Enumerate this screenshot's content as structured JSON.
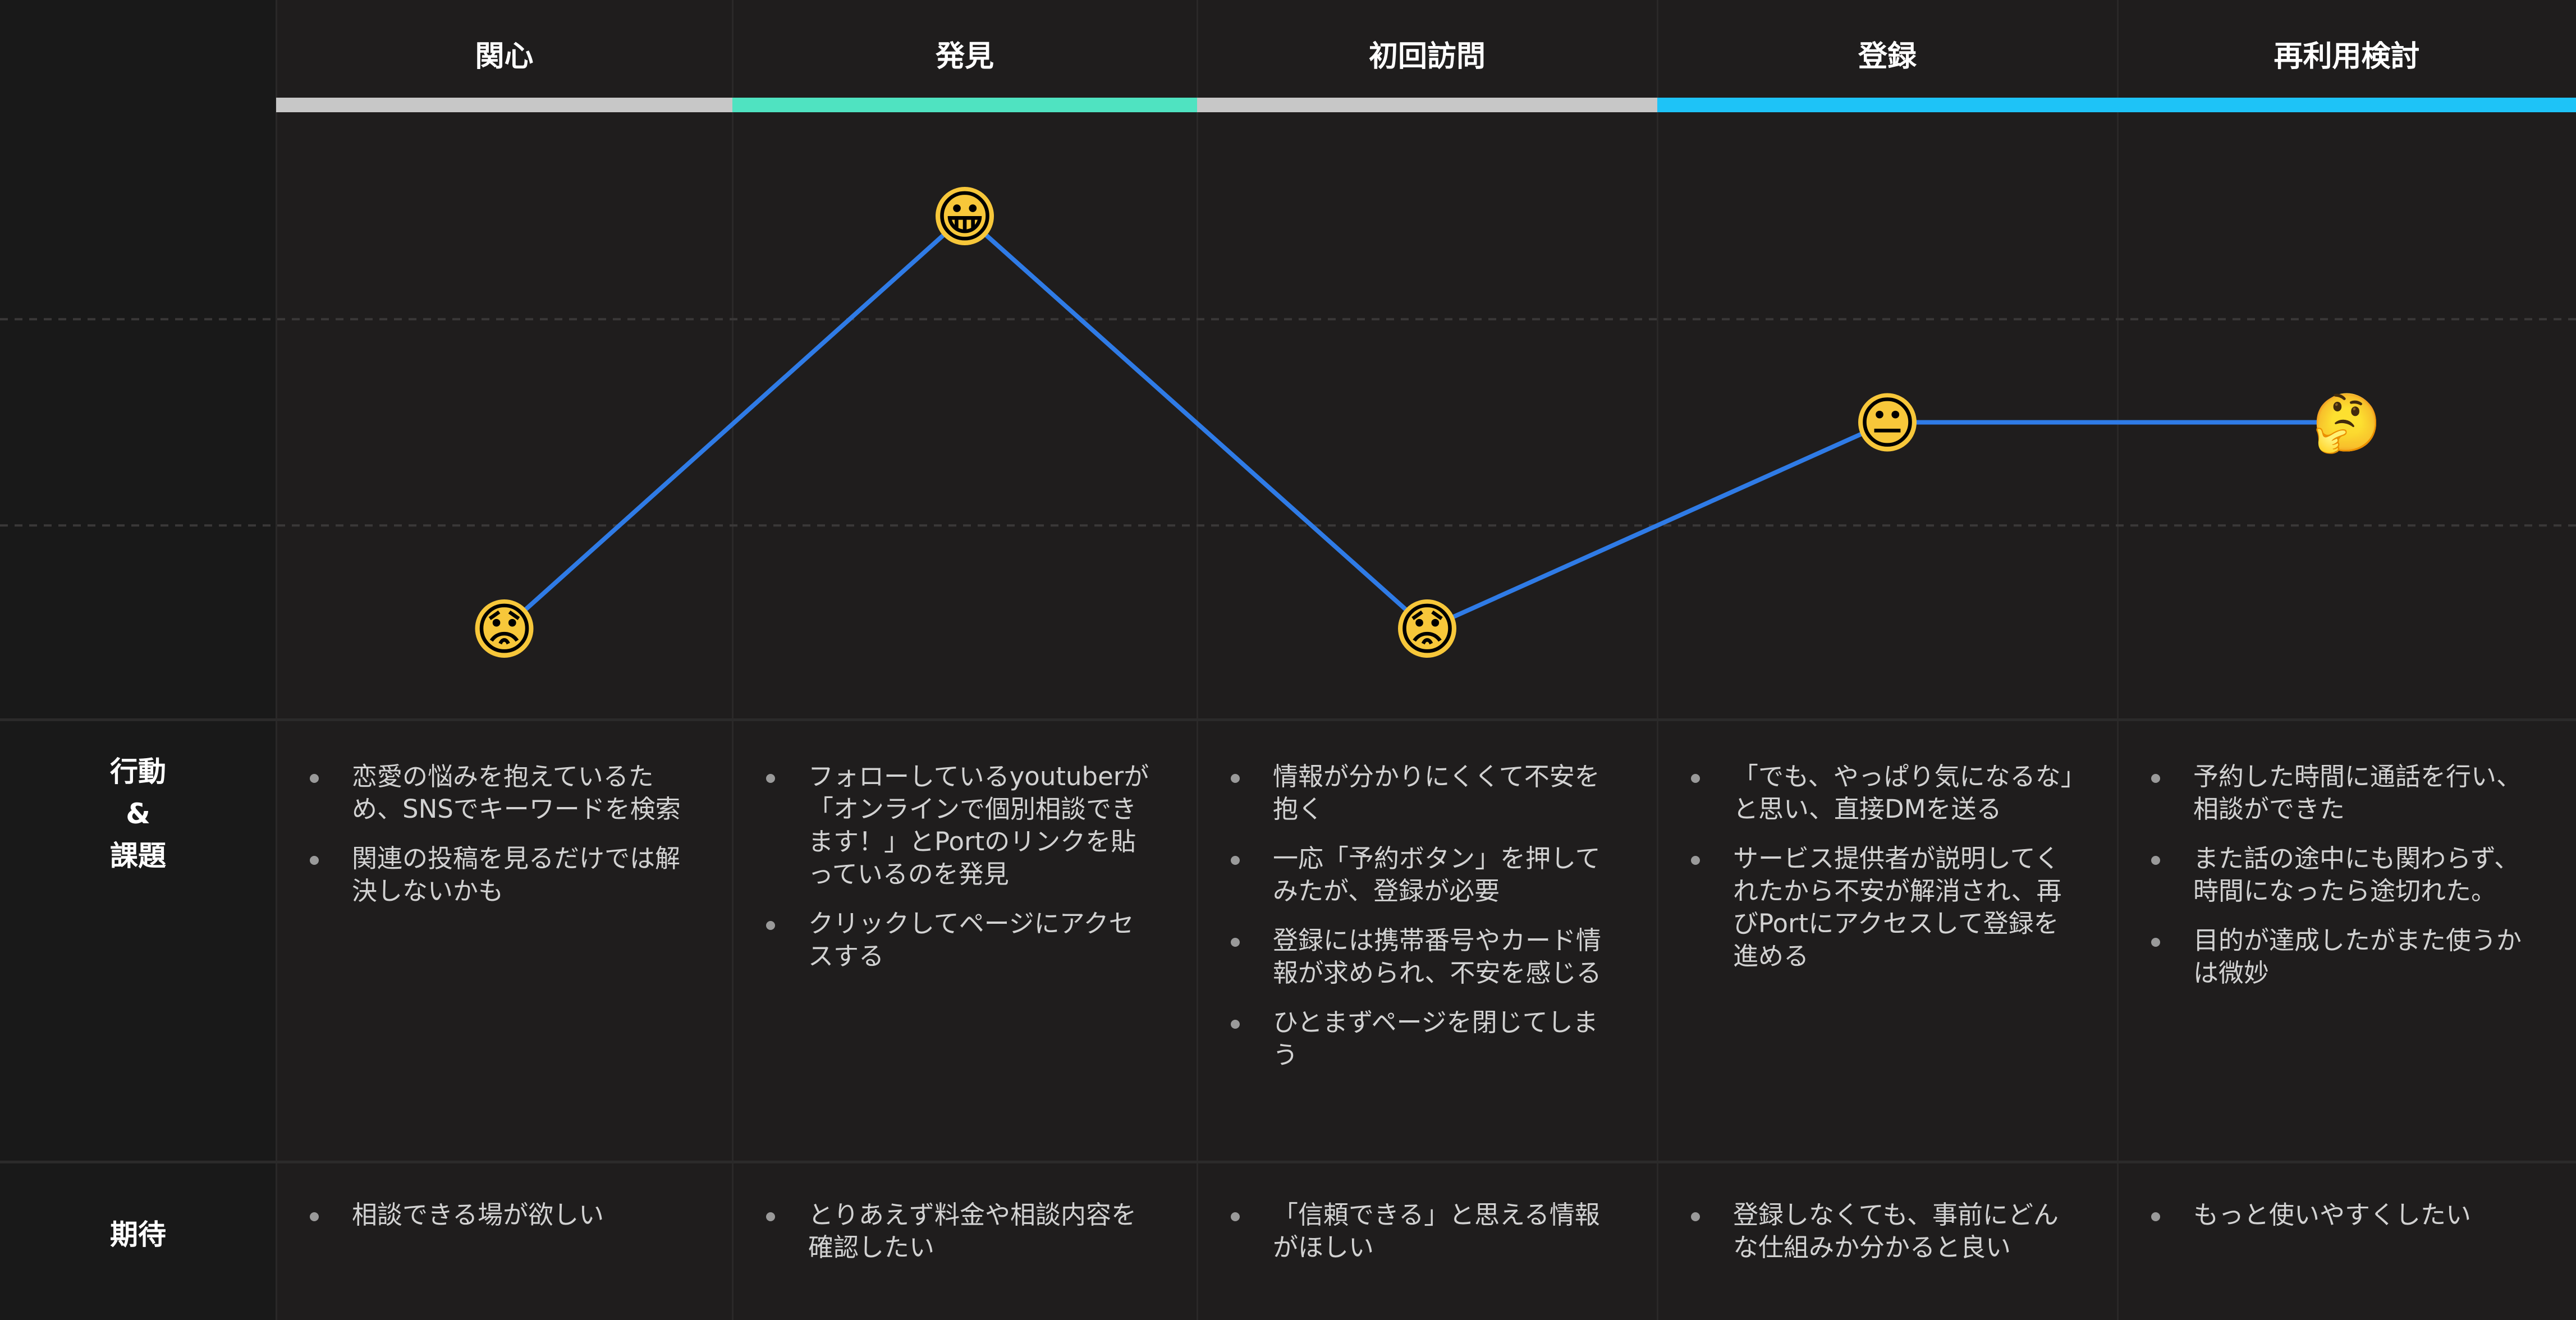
{
  "stages": [
    {
      "title": "関心",
      "color": "#c7c7c7",
      "emotion": "worried-face-icon",
      "emoji": "😟",
      "score": 1
    },
    {
      "title": "発見",
      "color": "#4fe3c1",
      "emotion": "grinning-face-icon",
      "emoji": "😀",
      "score": 3
    },
    {
      "title": "初回訪問",
      "color": "#c7c7c7",
      "emotion": "worried-face-icon",
      "emoji": "😟",
      "score": 1
    },
    {
      "title": "登録",
      "color": "#1ec3f7",
      "emotion": "neutral-face-icon",
      "emoji": "😐",
      "score": 2
    },
    {
      "title": "再利用検討",
      "color": "#1ec3f7",
      "emotion": "thinking-face-icon",
      "emoji": "🤔",
      "score": 2
    }
  ],
  "graph": {
    "line_color": "#2f7be6",
    "score_range": [
      0,
      4
    ]
  },
  "rows": {
    "actions_label": "行動\n&\n課題",
    "expectation_label": "期待"
  },
  "actions": [
    [
      "恋愛の悩みを抱えているため、SNSでキーワードを検索",
      "関連の投稿を見るだけでは解決しないかも"
    ],
    [
      "フォローしているyoutuberが「オンラインで個別相談できます！」とPortのリンクを貼っているのを発見",
      "クリックしてページにアクセスする"
    ],
    [
      "情報が分かりにくくて不安を抱く",
      "一応「予約ボタン」を押してみたが、登録が必要",
      "登録には携帯番号やカード情報が求められ、不安を感じる",
      "ひとまずページを閉じてしまう"
    ],
    [
      "「でも、やっぱり気になるな」と思い、直接DMを送る",
      "サービス提供者が説明してくれたから不安が解消され、再びPortにアクセスして登録を進める"
    ],
    [
      "予約した時間に通話を行い、相談ができた",
      "また話の途中にも関わらず、時間になったら途切れた。",
      "目的が達成したがまた使うかは微妙"
    ]
  ],
  "expectations": [
    [
      "相談できる場が欲しい"
    ],
    [
      "とりあえず料金や相談内容を確認したい"
    ],
    [
      "「信頼できる」と思える情報がほしい"
    ],
    [
      "登録しなくても、事前にどんな仕組みか分かると良い"
    ],
    [
      "もっと使いやすくしたい"
    ]
  ]
}
